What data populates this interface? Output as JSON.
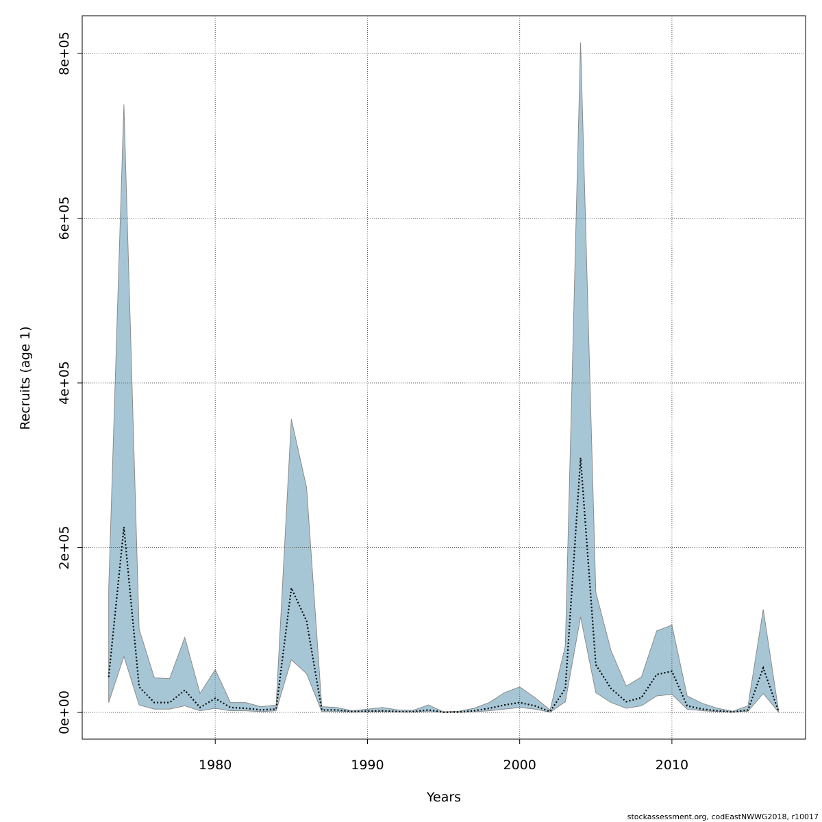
{
  "chart_data": {
    "type": "line",
    "xlabel": "Years",
    "ylabel": "Recruits (age 1)",
    "footer": "stockassessment.org, codEastNWWG2018, r10017",
    "x": [
      1973,
      1974,
      1975,
      1976,
      1977,
      1978,
      1979,
      1980,
      1981,
      1982,
      1983,
      1984,
      1985,
      1986,
      1987,
      1988,
      1989,
      1990,
      1991,
      1992,
      1993,
      1994,
      1995,
      1996,
      1997,
      1998,
      1999,
      2000,
      2001,
      2002,
      2003,
      2004,
      2005,
      2006,
      2007,
      2008,
      2009,
      2010,
      2011,
      2012,
      2013,
      2014,
      2015,
      2016,
      2017
    ],
    "values": [
      43000,
      225000,
      31000,
      12000,
      12000,
      27000,
      6000,
      17000,
      6000,
      5000,
      3000,
      4000,
      151000,
      111000,
      3000,
      3000,
      1000,
      1500,
      2000,
      1000,
      1000,
      3000,
      300,
      500,
      2000,
      5000,
      9000,
      12000,
      8000,
      1000,
      29000,
      309000,
      58000,
      29000,
      13000,
      18000,
      46000,
      50000,
      8000,
      4000,
      2000,
      500,
      3000,
      54000,
      1500
    ],
    "color": "#000000",
    "band": {
      "lower": [
        12000,
        68000,
        9000,
        4000,
        4000,
        8000,
        2000,
        5000,
        2000,
        2000,
        1000,
        2000,
        64000,
        47000,
        1000,
        1000,
        500,
        500,
        1000,
        500,
        500,
        1000,
        100,
        200,
        800,
        2000,
        4000,
        6000,
        4000,
        300,
        13000,
        116000,
        24000,
        12000,
        5000,
        8000,
        20000,
        22000,
        4000,
        2000,
        1000,
        200,
        1500,
        23000,
        500
      ],
      "upper": [
        150000,
        738000,
        101000,
        42000,
        41000,
        91000,
        23000,
        52000,
        12000,
        12000,
        7000,
        9000,
        356000,
        273000,
        7000,
        6000,
        2000,
        4000,
        6000,
        3000,
        2500,
        9000,
        800,
        1500,
        5000,
        12000,
        24000,
        31000,
        18000,
        3000,
        81000,
        813000,
        146000,
        75000,
        32000,
        43000,
        99000,
        106000,
        20000,
        11000,
        5000,
        1500,
        8000,
        125000,
        3000
      ],
      "color": "#a6c6d6"
    },
    "xlim": [
      1971.26,
      2018.78
    ],
    "xticks": [
      1980,
      1990,
      2000,
      2010
    ],
    "ylim": [
      -32400,
      845700
    ],
    "yticks": [
      {
        "value": 0,
        "label": "0e+00"
      },
      {
        "value": 200000,
        "label": "2e+05"
      },
      {
        "value": 400000,
        "label": "4e+05"
      },
      {
        "value": 600000,
        "label": "6e+05"
      },
      {
        "value": 800000,
        "label": "8e+05"
      }
    ],
    "grid": true
  }
}
